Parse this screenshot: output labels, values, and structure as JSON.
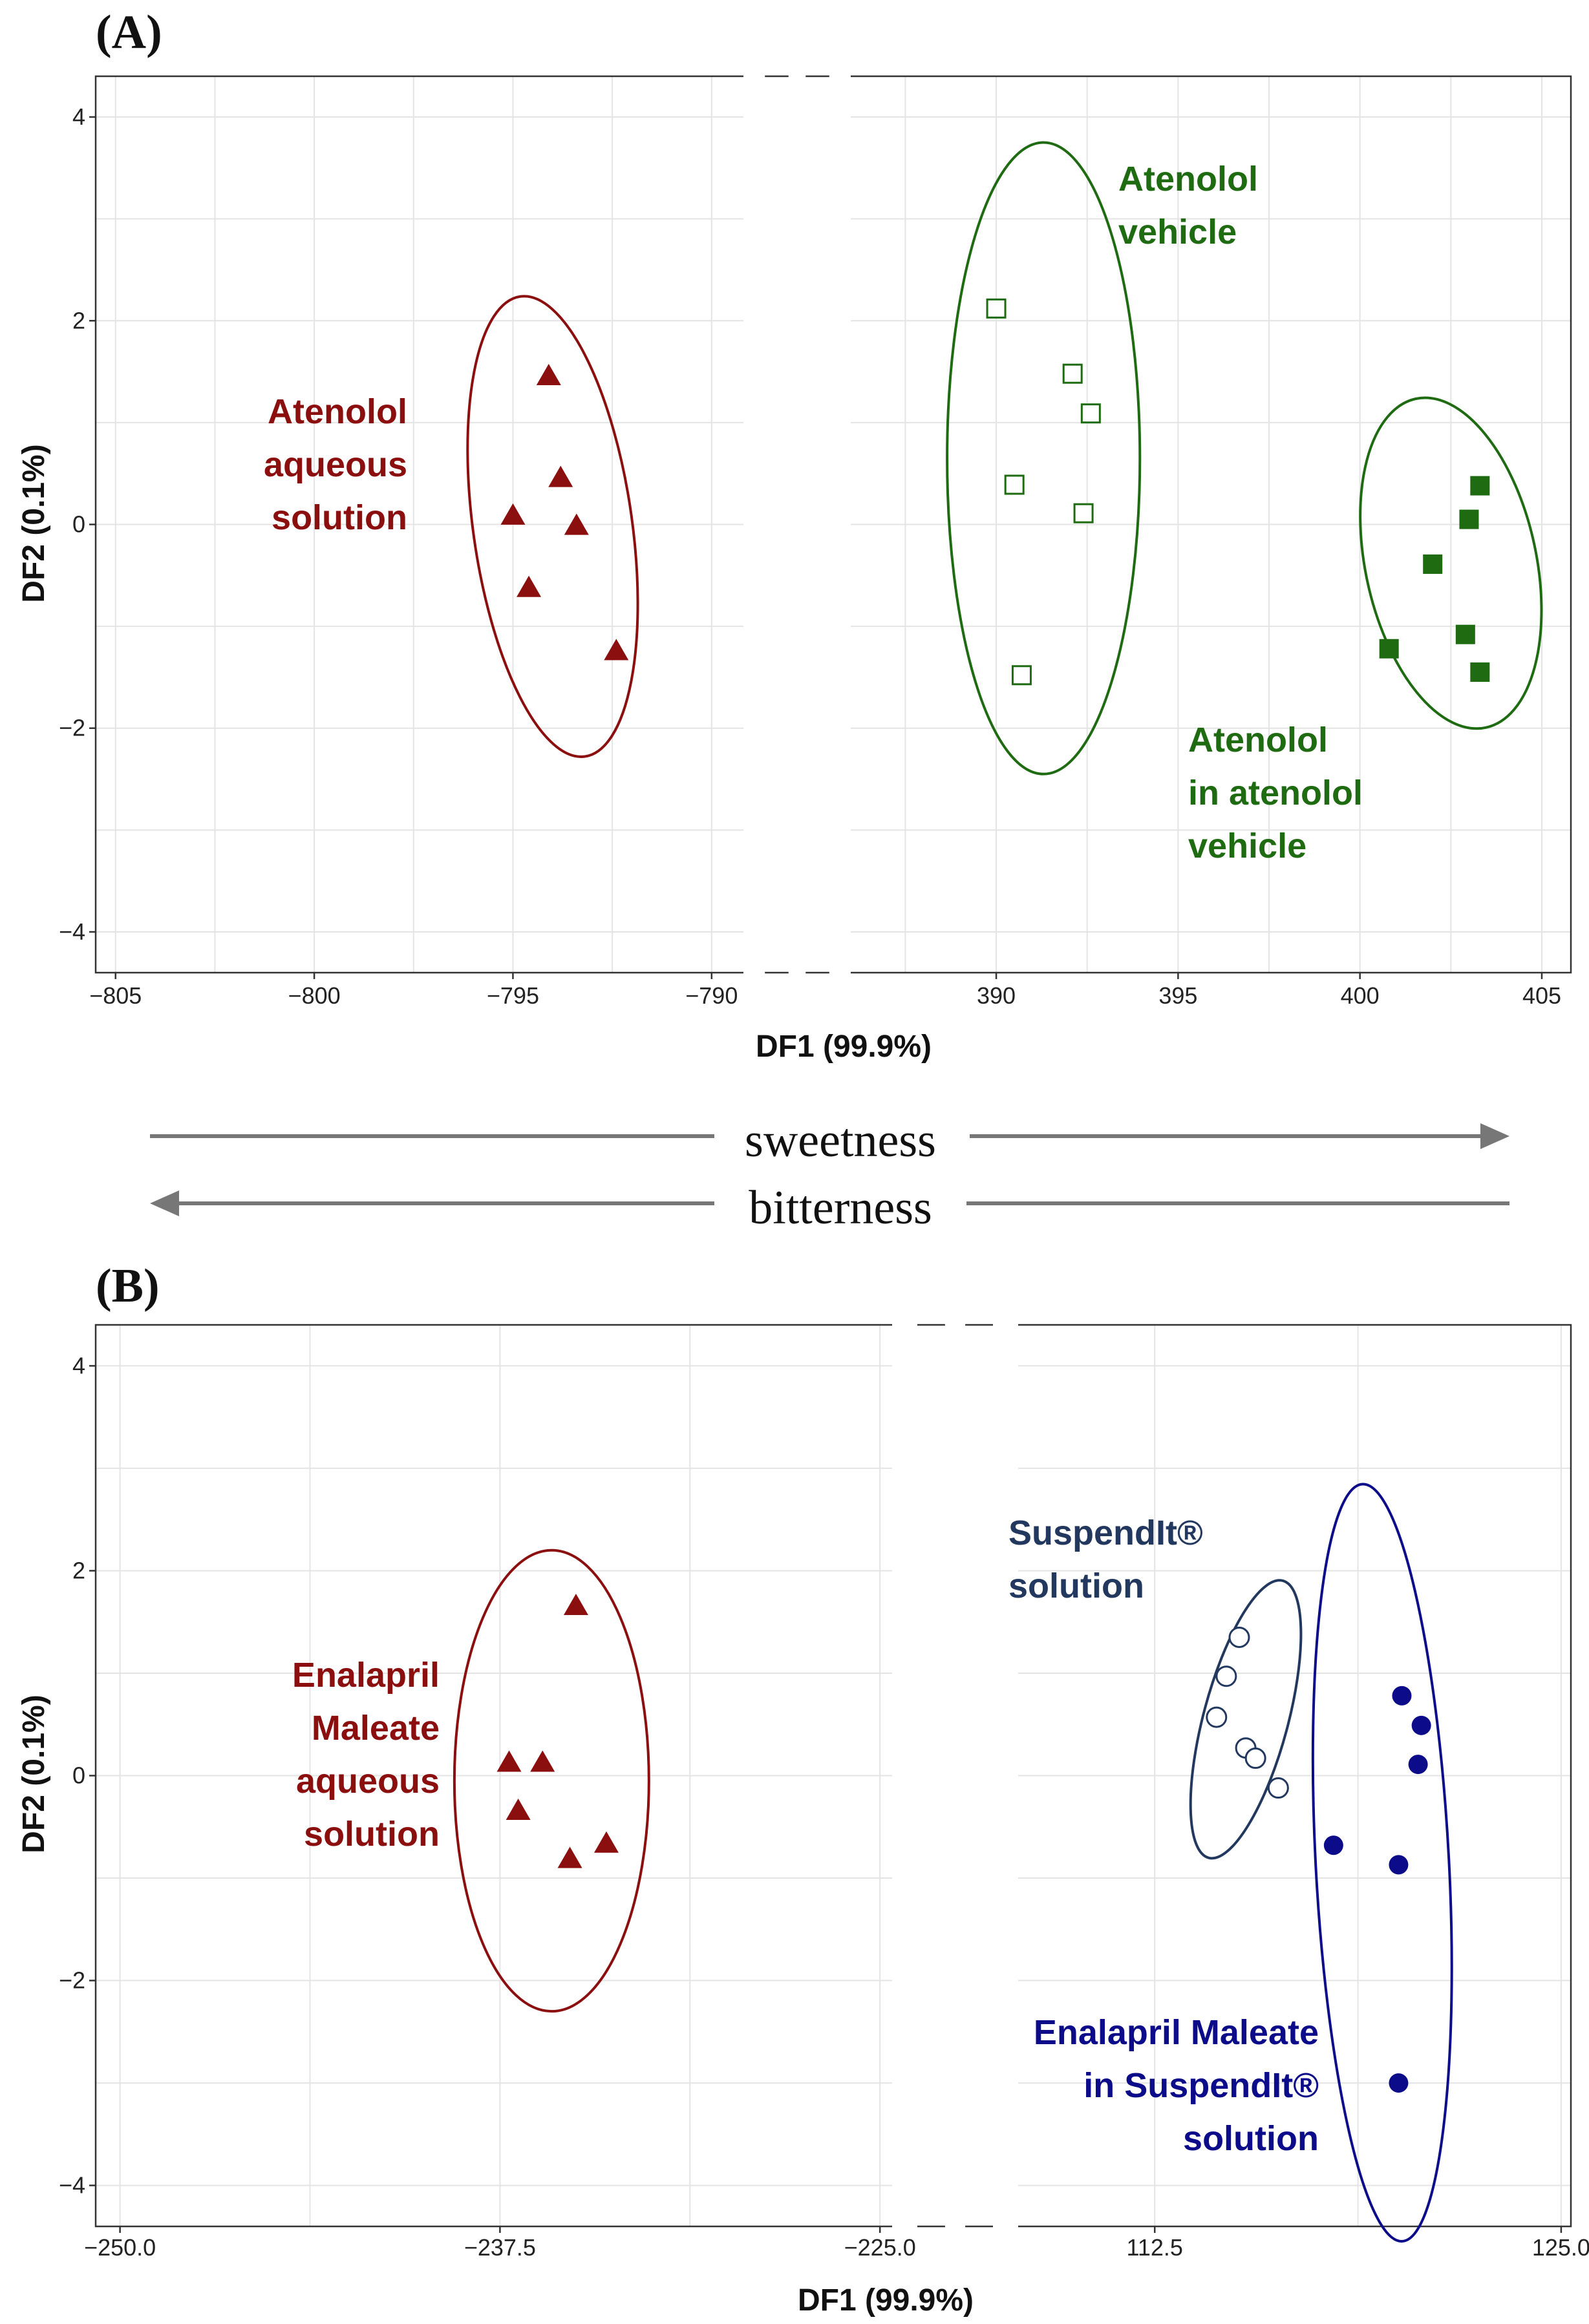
{
  "chart_data": [
    {
      "type": "scatter",
      "panel_label": "(A)",
      "xlabel": "DF1 (99.9%)",
      "ylabel": "DF2 (0.1%)",
      "x_axis_break": true,
      "x_ranges": [
        [
          -805.5,
          -789.2
        ],
        [
          386,
          405.8
        ]
      ],
      "ylim": [
        -4.4,
        4.4
      ],
      "x_ticks_left": [
        -805,
        -800,
        -795,
        -790
      ],
      "x_tick_labels_left": [
        "−805",
        "−800",
        "−795",
        "−790"
      ],
      "x_ticks_right": [
        390,
        395,
        400,
        405
      ],
      "x_tick_labels_right": [
        "390",
        "395",
        "400",
        "405"
      ],
      "y_ticks": [
        4,
        2,
        0,
        -2,
        -4
      ],
      "y_tick_labels": [
        "4",
        "2",
        "0",
        "−2",
        "−4"
      ],
      "colors": {
        "red": "#8b0f0f",
        "green": "#1e6b12"
      },
      "series": [
        {
          "name": "Atenolol aqueous solution",
          "label_lines": [
            "Atenolol",
            "aqueous",
            "solution"
          ],
          "label_align": "end",
          "label_pos": "left",
          "color": "red",
          "marker": "triangle-filled",
          "segment": 0,
          "x": [
            -794.1,
            -793.8,
            -795.0,
            -793.4,
            -794.6,
            -792.4
          ],
          "y": [
            1.45,
            0.45,
            0.08,
            -0.02,
            -0.63,
            -1.25
          ],
          "ellipse": {
            "cx": -794.0,
            "cy": -0.02,
            "rx": 2.0,
            "ry": 2.28,
            "angle_deg": 8
          }
        },
        {
          "name": "Atenolol vehicle",
          "label_lines": [
            "Atenolol",
            "vehicle"
          ],
          "label_align": "start",
          "label_pos": "top-right",
          "color": "green",
          "marker": "square-open",
          "segment": 1,
          "x": [
            390.0,
            392.1,
            392.6,
            390.5,
            392.4,
            390.7
          ],
          "y": [
            2.12,
            1.48,
            1.09,
            0.39,
            0.11,
            -1.48
          ],
          "ellipse": {
            "cx": 391.3,
            "cy": 0.65,
            "rx": 2.65,
            "ry": 3.1,
            "angle_deg": 0
          }
        },
        {
          "name": "Atenolol in atenolol vehicle",
          "label_lines": [
            "Atenolol",
            "in atenolol",
            "vehicle"
          ],
          "label_align": "start",
          "label_pos": "bottom",
          "color": "green",
          "marker": "square-filled",
          "segment": 1,
          "x": [
            403.3,
            403.0,
            402.0,
            400.8,
            402.9,
            403.3
          ],
          "y": [
            0.38,
            0.05,
            -0.39,
            -1.22,
            -1.08,
            -1.45
          ],
          "ellipse": {
            "cx": 402.5,
            "cy": -0.38,
            "rx": 2.35,
            "ry": 1.65,
            "angle_deg": 12
          }
        }
      ]
    },
    {
      "type": "scatter",
      "panel_label": "(B)",
      "xlabel": "DF1 (99.9%)",
      "ylabel": "DF2 (0.1%)",
      "x_axis_break": true,
      "x_ranges": [
        [
          -250.8,
          -224.6
        ],
        [
          108.3,
          125.3
        ]
      ],
      "ylim": [
        -4.4,
        4.4
      ],
      "x_ticks_left": [
        -250.0,
        -237.5,
        -225.0
      ],
      "x_tick_labels_left": [
        "−250.0",
        "−237.5",
        "−225.0"
      ],
      "x_ticks_right": [
        112.5,
        125.0
      ],
      "x_tick_labels_right": [
        "112.5",
        "125.0"
      ],
      "y_ticks": [
        4,
        2,
        0,
        -2,
        -4
      ],
      "y_tick_labels": [
        "4",
        "2",
        "0",
        "−2",
        "−4"
      ],
      "colors": {
        "red": "#8b0f0f",
        "blue": "#0c0c8a",
        "navy": "#22385e"
      },
      "series": [
        {
          "name": "Enalapril Maleate aqueous solution",
          "label_lines": [
            "Enalapril",
            "Maleate",
            "aqueous",
            "solution"
          ],
          "label_align": "end",
          "label_pos": "left",
          "color": "red",
          "marker": "triangle-filled",
          "segment": 0,
          "x": [
            -235.0,
            -237.2,
            -236.1,
            -236.9,
            -235.2,
            -234.0
          ],
          "y": [
            1.65,
            0.12,
            0.12,
            -0.35,
            -0.82,
            -0.67
          ],
          "ellipse": {
            "cx": -235.8,
            "cy": -0.05,
            "rx": 3.2,
            "ry": 2.25,
            "angle_deg": 0
          }
        },
        {
          "name": "SuspendIt® solution",
          "label_lines": [
            "SuspendIt®",
            "solution"
          ],
          "label_align": "start",
          "label_pos": "top-left",
          "color": "navy",
          "marker": "circle-open",
          "segment": 1,
          "x": [
            115.1,
            114.7,
            114.4,
            115.3,
            115.6,
            116.3
          ],
          "y": [
            1.35,
            0.97,
            0.57,
            0.27,
            0.17,
            -0.12
          ],
          "ellipse": {
            "cx": 115.3,
            "cy": 0.55,
            "rx": 1.3,
            "ry": 1.4,
            "angle_deg": -15
          }
        },
        {
          "name": "Enalapril Maleate in SuspendIt® solution",
          "label_lines": [
            "Enalapril Maleate",
            "in SuspendIt®",
            "solution"
          ],
          "label_align": "end",
          "label_pos": "bottom-left",
          "color": "blue",
          "marker": "circle-filled",
          "segment": 1,
          "x": [
            120.1,
            120.7,
            120.6,
            118.0,
            120.0,
            120.0
          ],
          "y": [
            0.78,
            0.49,
            0.11,
            -0.68,
            -0.87,
            -3.0
          ],
          "ellipse": {
            "cx": 119.5,
            "cy": -0.85,
            "rx": 2.05,
            "ry": 3.7,
            "angle_deg": 3
          }
        }
      ]
    }
  ],
  "arrows": {
    "sweetness": {
      "label": "sweetness",
      "direction": "right"
    },
    "bitterness": {
      "label": "bitterness",
      "direction": "left"
    }
  }
}
